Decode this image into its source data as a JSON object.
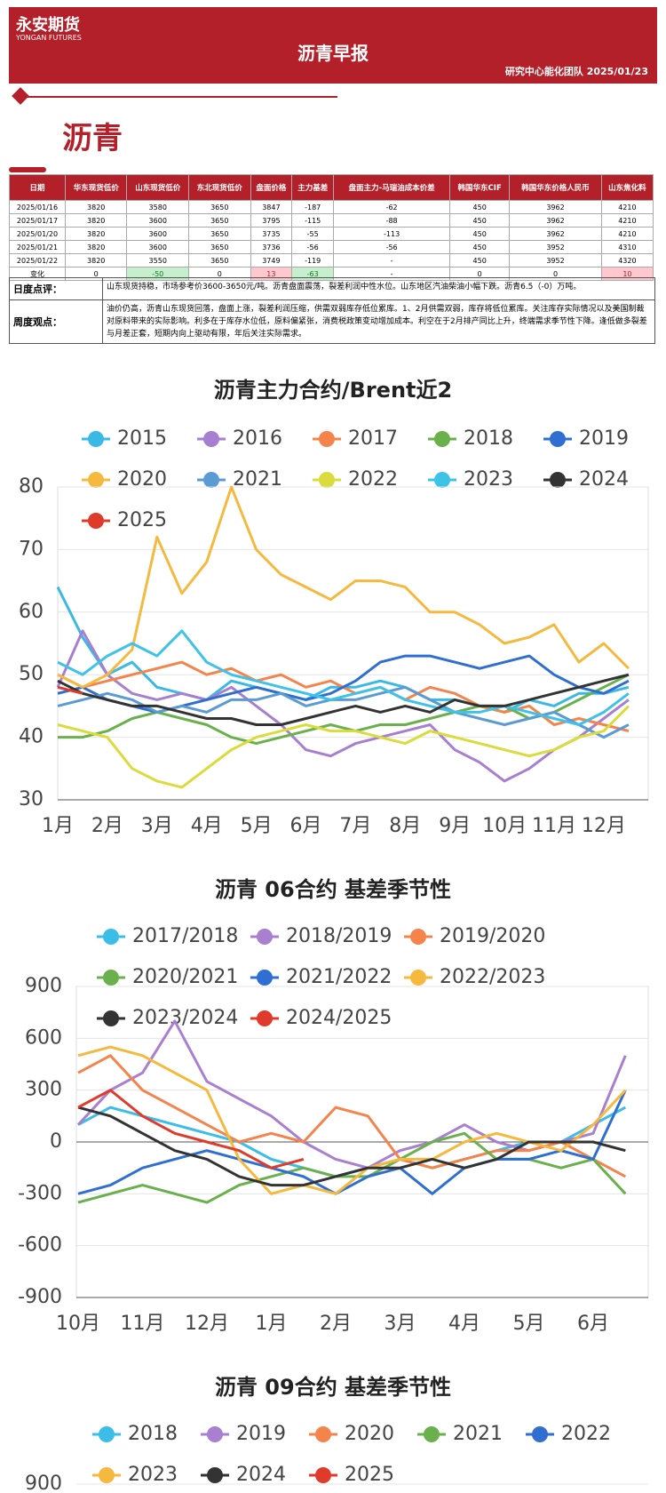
{
  "header": {
    "logo": "永安期货",
    "logo_en": "YONGAN FUTURES",
    "title": "沥青早报",
    "subtitle": "研究中心能化团队  2025/01/23"
  },
  "section": "沥青",
  "table": {
    "header": [
      "日期",
      "华东现货低价",
      "山东现货低价",
      "东北现货低价",
      "盘面价格",
      "主力基差",
      "盘面主力-马瑞油成本价差",
      "韩国华东CIF",
      "韩国华东价格人民币",
      "山东焦化料"
    ],
    "rows": [
      [
        "2025/01/16",
        3820,
        3580,
        3650,
        3847,
        -187,
        -62,
        450,
        3962,
        4210
      ],
      [
        "2025/01/17",
        3820,
        3600,
        3650,
        3795,
        -115,
        -88,
        450,
        3962,
        4210
      ],
      [
        "2025/01/20",
        3820,
        3600,
        3650,
        3735,
        -55,
        -113,
        450,
        3962,
        4210
      ],
      [
        "2025/01/21",
        3820,
        3600,
        3650,
        3736,
        -56,
        -56,
        450,
        3952,
        4310
      ],
      [
        "2025/01/22",
        3820,
        3550,
        3650,
        3749,
        -119,
        "-",
        450,
        3952,
        4320
      ],
      [
        "变化",
        0,
        -50,
        0,
        13,
        -63,
        "-",
        0,
        0,
        10
      ]
    ]
  },
  "comments": [
    {
      "key": "日度点评：",
      "text": "山东现货持稳，市场参考价3600-3650元/吨。沥青盘面震荡，裂差利润中性水位。山东地区汽油柴油小幅下跌。沥青6.5（-0）万吨。"
    },
    {
      "key": "周度观点：",
      "text": "油价仍高，沥青山东现货回落，盘面上涨，裂差利润压缩，供需双弱库存低位累库。1、2月供需双弱，库存将低位累库。关注库存实际情况以及美国制裁对原料带来的实际影响。利多在于库存水位低，原料偏紧张，消费税政策变动增加成本。利空在于2月排产同比上升，终端需求季节性下降。逢低做多裂差与月差正套，短期内向上驱动有限，年后关注实际需求。"
    }
  ],
  "chart_data": [
    {
      "type": "line",
      "title": "沥青主力合约/Brent近2",
      "categories": [
        "1月",
        null,
        "2月",
        null,
        "3月",
        null,
        "4月",
        null,
        "5月",
        null,
        "6月",
        null,
        "7月",
        null,
        "8月",
        null,
        "9月",
        null,
        "10月",
        null,
        "11月",
        null,
        "12月",
        null
      ],
      "ylim": [
        30,
        80
      ],
      "yticks": [
        30,
        40,
        50,
        60,
        70,
        80
      ],
      "series": [
        {
          "name": "2015",
          "color": "#39b9e4",
          "values": [
            64,
            56,
            50,
            52,
            48,
            47,
            46,
            49,
            48,
            47,
            46,
            48,
            48,
            49,
            48,
            46,
            46,
            45,
            44,
            46,
            45,
            47,
            47,
            48
          ]
        },
        {
          "name": "2016",
          "color": "#a67fd0",
          "values": [
            48,
            57,
            50,
            47,
            46,
            47,
            46,
            48,
            45,
            42,
            38,
            37,
            39,
            40,
            41,
            42,
            38,
            36,
            33,
            35,
            38,
            40,
            43,
            46
          ]
        },
        {
          "name": "2017",
          "color": "#f5844c",
          "values": [
            50,
            48,
            49,
            50,
            51,
            52,
            50,
            51,
            49,
            50,
            48,
            49,
            47,
            48,
            46,
            48,
            47,
            45,
            44,
            45,
            42,
            43,
            42,
            41
          ]
        },
        {
          "name": "2018",
          "color": "#6ab04c",
          "values": [
            40,
            40,
            41,
            43,
            44,
            43,
            42,
            40,
            39,
            40,
            41,
            42,
            41,
            42,
            42,
            43,
            44,
            45,
            45,
            43,
            44,
            46,
            48,
            50
          ]
        },
        {
          "name": "2019",
          "color": "#2e6fd1",
          "values": [
            47,
            48,
            46,
            45,
            44,
            45,
            46,
            47,
            48,
            47,
            46,
            47,
            49,
            52,
            53,
            53,
            52,
            51,
            52,
            53,
            50,
            48,
            47,
            49
          ]
        },
        {
          "name": "2020",
          "color": "#f5b93f",
          "values": [
            50,
            48,
            50,
            54,
            72,
            63,
            68,
            80,
            70,
            66,
            64,
            62,
            65,
            65,
            64,
            60,
            60,
            58,
            55,
            56,
            58,
            52,
            55,
            51
          ]
        },
        {
          "name": "2021",
          "color": "#5b9bd5",
          "values": [
            45,
            46,
            47,
            46,
            44,
            45,
            44,
            46,
            46,
            47,
            45,
            46,
            46,
            47,
            48,
            46,
            44,
            43,
            42,
            43,
            44,
            42,
            40,
            42
          ]
        },
        {
          "name": "2022",
          "color": "#d9dc3a",
          "values": [
            42,
            41,
            40,
            35,
            33,
            32,
            35,
            38,
            40,
            41,
            42,
            41,
            41,
            40,
            39,
            41,
            40,
            39,
            38,
            37,
            38,
            40,
            41,
            45
          ]
        },
        {
          "name": "2023",
          "color": "#3ec3e8",
          "values": [
            52,
            50,
            53,
            55,
            53,
            57,
            52,
            50,
            49,
            48,
            47,
            46,
            47,
            48,
            46,
            45,
            44,
            44,
            45,
            44,
            43,
            42,
            44,
            47
          ]
        },
        {
          "name": "2024",
          "color": "#333333",
          "values": [
            49,
            47,
            46,
            45,
            45,
            44,
            43,
            43,
            42,
            42,
            43,
            44,
            45,
            44,
            45,
            44,
            46,
            45,
            45,
            46,
            47,
            48,
            49,
            50
          ]
        },
        {
          "name": "2025",
          "color": "#e03a2a",
          "values": [
            48,
            47,
            null,
            null,
            null,
            null,
            null,
            null,
            null,
            null,
            null,
            null,
            null,
            null,
            null,
            null,
            null,
            null,
            null,
            null,
            null,
            null,
            null,
            null
          ]
        }
      ]
    },
    {
      "type": "line",
      "title": "沥青 06合约 基差季节性",
      "categories": [
        "10月",
        null,
        "11月",
        null,
        "12月",
        null,
        "1月",
        null,
        "2月",
        null,
        "3月",
        null,
        "4月",
        null,
        "5月",
        null,
        "6月",
        null
      ],
      "ylim": [
        -900,
        900
      ],
      "yticks": [
        -900,
        -600,
        -300,
        0,
        300,
        600,
        900
      ],
      "series": [
        {
          "name": "2017/2018",
          "color": "#3cbde8",
          "values": [
            100,
            200,
            150,
            100,
            50,
            0,
            -100,
            -150,
            -200,
            -150,
            -100,
            -150,
            -100,
            -50,
            0,
            0,
            100,
            200
          ]
        },
        {
          "name": "2018/2019",
          "color": "#a97fcf",
          "values": [
            100,
            300,
            400,
            700,
            350,
            250,
            150,
            0,
            -100,
            -150,
            -50,
            0,
            100,
            0,
            -50,
            0,
            50,
            500
          ]
        },
        {
          "name": "2019/2020",
          "color": "#f5844c",
          "values": [
            400,
            500,
            300,
            200,
            100,
            0,
            50,
            0,
            200,
            150,
            -100,
            -150,
            -100,
            -50,
            -50,
            0,
            -100,
            -200
          ]
        },
        {
          "name": "2020/2021",
          "color": "#6ab04c",
          "values": [
            -350,
            -300,
            -250,
            -300,
            -350,
            -250,
            -200,
            -150,
            -200,
            -200,
            -100,
            0,
            50,
            -100,
            -100,
            -150,
            -100,
            -300
          ]
        },
        {
          "name": "2021/2022",
          "color": "#2e6fd1",
          "values": [
            -300,
            -250,
            -150,
            -100,
            -50,
            -100,
            -150,
            -200,
            -300,
            -200,
            -150,
            -300,
            -150,
            -100,
            -100,
            -50,
            -100,
            300
          ]
        },
        {
          "name": "2022/2023",
          "color": "#f5b93f",
          "values": [
            500,
            550,
            500,
            400,
            300,
            -100,
            -300,
            -250,
            -300,
            -150,
            -100,
            -100,
            0,
            50,
            0,
            -50,
            100,
            300
          ]
        },
        {
          "name": "2023/2024",
          "color": "#333333",
          "values": [
            200,
            150,
            50,
            -50,
            -100,
            -200,
            -250,
            -250,
            -200,
            -150,
            -150,
            -100,
            -150,
            -100,
            0,
            0,
            0,
            -50
          ]
        },
        {
          "name": "2024/2025",
          "color": "#e03a2a",
          "values": [
            200,
            300,
            150,
            50,
            0,
            -50,
            -150,
            -100,
            null,
            null,
            null,
            null,
            null,
            null,
            null,
            null,
            null,
            null
          ]
        }
      ]
    },
    {
      "type": "line",
      "title": "沥青 09合约 基差季节性",
      "yticks": [
        900
      ],
      "series": [
        {
          "name": "2018",
          "color": "#3cbde8"
        },
        {
          "name": "2019",
          "color": "#a97fcf"
        },
        {
          "name": "2020",
          "color": "#f5844c"
        },
        {
          "name": "2021",
          "color": "#6ab04c"
        },
        {
          "name": "2022",
          "color": "#2e6fd1"
        },
        {
          "name": "2023",
          "color": "#f5b93f"
        },
        {
          "name": "2024",
          "color": "#333333"
        },
        {
          "name": "2025",
          "color": "#e03a2a"
        }
      ]
    }
  ]
}
